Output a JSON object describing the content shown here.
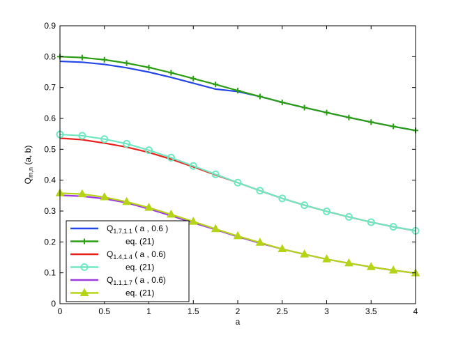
{
  "chart_data": {
    "type": "line",
    "xlabel": "a",
    "ylabel": {
      "main": "Q",
      "sub": "m,n",
      "rest": " (a, b)"
    },
    "xlim": [
      0,
      4
    ],
    "ylim": [
      0,
      0.9
    ],
    "xticks": [
      "0",
      "0.5",
      "1",
      "1.5",
      "2",
      "2.5",
      "3",
      "3.5",
      "4"
    ],
    "yticks": [
      "0",
      "0.1",
      "0.2",
      "0.3",
      "0.4",
      "0.5",
      "0.6",
      "0.7",
      "0.8",
      "0.9"
    ],
    "grid": false,
    "legend_position": "bottom-left",
    "series": [
      {
        "name": {
          "main": "Q",
          "sub": "1.7,1.1",
          "rest": " ( a , 0.6 )"
        },
        "color": "#2346e8",
        "marker": "none",
        "x": [
          0,
          0.25,
          0.5,
          0.75,
          1,
          1.25,
          1.5,
          1.75,
          2,
          2.25,
          2.5,
          2.75,
          3,
          3.25,
          3.5,
          3.75,
          4
        ],
        "y": [
          0.785,
          0.782,
          0.775,
          0.764,
          0.75,
          0.733,
          0.714,
          0.695,
          0.687,
          0.671,
          0.652,
          0.635,
          0.619,
          0.603,
          0.588,
          0.574,
          0.561
        ]
      },
      {
        "name": "eq. (21)",
        "color": "#2a9d13",
        "marker": "plus",
        "x": [
          0,
          0.25,
          0.5,
          0.75,
          1,
          1.25,
          1.5,
          1.75,
          2,
          2.25,
          2.5,
          2.75,
          3,
          3.25,
          3.5,
          3.75,
          4
        ],
        "y": [
          0.8,
          0.797,
          0.79,
          0.779,
          0.765,
          0.748,
          0.729,
          0.71,
          0.69,
          0.671,
          0.652,
          0.635,
          0.619,
          0.603,
          0.588,
          0.574,
          0.561
        ]
      },
      {
        "name": {
          "main": "Q",
          "sub": "1.4,1.4",
          "rest": " ( a , 0.6)"
        },
        "color": "#e8201a",
        "marker": "none",
        "x": [
          0,
          0.25,
          0.5,
          0.75,
          1,
          1.25,
          1.5,
          1.75,
          2,
          2.25,
          2.5,
          2.75,
          3,
          3.25,
          3.5,
          3.75,
          4
        ],
        "y": [
          0.536,
          0.531,
          0.52,
          0.507,
          0.49,
          0.468,
          0.443,
          0.417,
          0.392,
          0.366,
          0.341,
          0.319,
          0.299,
          0.281,
          0.264,
          0.249,
          0.236
        ]
      },
      {
        "name": "eq. (21)",
        "color": "#6fe8c2",
        "marker": "circle",
        "x": [
          0,
          0.25,
          0.5,
          0.75,
          1,
          1.25,
          1.5,
          1.75,
          2,
          2.25,
          2.5,
          2.75,
          3,
          3.25,
          3.5,
          3.75,
          4
        ],
        "y": [
          0.548,
          0.544,
          0.533,
          0.518,
          0.497,
          0.473,
          0.446,
          0.419,
          0.392,
          0.366,
          0.341,
          0.319,
          0.299,
          0.281,
          0.264,
          0.249,
          0.236
        ]
      },
      {
        "name": {
          "main": "Q",
          "sub": "1.1,1.7",
          "rest": " ( a , 0.6)"
        },
        "color": "#9c3ae0",
        "marker": "none",
        "x": [
          0,
          0.25,
          0.5,
          0.75,
          1,
          1.25,
          1.5,
          1.75,
          2,
          2.25,
          2.5,
          2.75,
          3,
          3.25,
          3.5,
          3.75,
          4
        ],
        "y": [
          0.351,
          0.348,
          0.34,
          0.327,
          0.307,
          0.285,
          0.262,
          0.24,
          0.217,
          0.196,
          0.177,
          0.16,
          0.144,
          0.131,
          0.119,
          0.108,
          0.099
        ]
      },
      {
        "name": "eq. (21)",
        "color": "#b5d417",
        "marker": "triangle",
        "x": [
          0,
          0.25,
          0.5,
          0.75,
          1,
          1.25,
          1.5,
          1.75,
          2,
          2.25,
          2.5,
          2.75,
          3,
          3.25,
          3.5,
          3.75,
          4
        ],
        "y": [
          0.358,
          0.355,
          0.345,
          0.33,
          0.311,
          0.289,
          0.266,
          0.242,
          0.219,
          0.198,
          0.177,
          0.16,
          0.144,
          0.131,
          0.119,
          0.108,
          0.099
        ]
      }
    ]
  }
}
